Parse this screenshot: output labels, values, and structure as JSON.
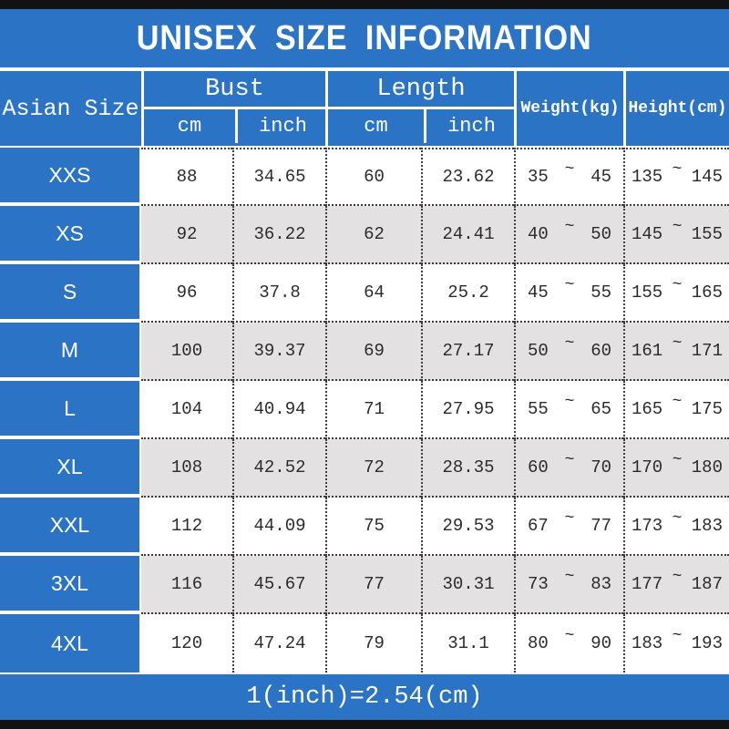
{
  "title": "UNISEX SIZE INFORMATION",
  "tilde": "~",
  "footer_note": "1(inch)=2.54(cm)",
  "colors": {
    "blue": "#2A73C5",
    "alt_row": "#E3E1E2",
    "strip": "#121212",
    "text": "#2B2B2B"
  },
  "header": {
    "size_col": "Asian Size",
    "bust": "Bust",
    "length": "Length",
    "cm": "cm",
    "inch": "inch",
    "weight": "Weight(kg)",
    "height": "Height(cm)"
  },
  "rows": [
    {
      "size": "XXS",
      "bust_cm": "88",
      "bust_inch": "34.65",
      "length_cm": "60",
      "length_inch": "23.62",
      "weight_min": "35",
      "weight_max": "45",
      "height_min": "135",
      "height_max": "145"
    },
    {
      "size": "XS",
      "bust_cm": "92",
      "bust_inch": "36.22",
      "length_cm": "62",
      "length_inch": "24.41",
      "weight_min": "40",
      "weight_max": "50",
      "height_min": "145",
      "height_max": "155"
    },
    {
      "size": "S",
      "bust_cm": "96",
      "bust_inch": "37.8",
      "length_cm": "64",
      "length_inch": "25.2",
      "weight_min": "45",
      "weight_max": "55",
      "height_min": "155",
      "height_max": "165"
    },
    {
      "size": "M",
      "bust_cm": "100",
      "bust_inch": "39.37",
      "length_cm": "69",
      "length_inch": "27.17",
      "weight_min": "50",
      "weight_max": "60",
      "height_min": "161",
      "height_max": "171"
    },
    {
      "size": "L",
      "bust_cm": "104",
      "bust_inch": "40.94",
      "length_cm": "71",
      "length_inch": "27.95",
      "weight_min": "55",
      "weight_max": "65",
      "height_min": "165",
      "height_max": "175"
    },
    {
      "size": "XL",
      "bust_cm": "108",
      "bust_inch": "42.52",
      "length_cm": "72",
      "length_inch": "28.35",
      "weight_min": "60",
      "weight_max": "70",
      "height_min": "170",
      "height_max": "180"
    },
    {
      "size": "XXL",
      "bust_cm": "112",
      "bust_inch": "44.09",
      "length_cm": "75",
      "length_inch": "29.53",
      "weight_min": "67",
      "weight_max": "77",
      "height_min": "173",
      "height_max": "183"
    },
    {
      "size": "3XL",
      "bust_cm": "116",
      "bust_inch": "45.67",
      "length_cm": "77",
      "length_inch": "30.31",
      "weight_min": "73",
      "weight_max": "83",
      "height_min": "177",
      "height_max": "187"
    },
    {
      "size": "4XL",
      "bust_cm": "120",
      "bust_inch": "47.24",
      "length_cm": "79",
      "length_inch": "31.1",
      "weight_min": "80",
      "weight_max": "90",
      "height_min": "183",
      "height_max": "193"
    }
  ],
  "chart_data": {
    "type": "table",
    "title": "UNISEX SIZE INFORMATION",
    "columns": [
      "Asian Size",
      "Bust cm",
      "Bust inch",
      "Length cm",
      "Length inch",
      "Weight(kg)",
      "Height(cm)"
    ],
    "rows": [
      [
        "XXS",
        88,
        34.65,
        60,
        23.62,
        "35~45",
        "135~145"
      ],
      [
        "XS",
        92,
        36.22,
        62,
        24.41,
        "40~50",
        "145~155"
      ],
      [
        "S",
        96,
        37.8,
        64,
        25.2,
        "45~55",
        "155~165"
      ],
      [
        "M",
        100,
        39.37,
        69,
        27.17,
        "50~60",
        "161~171"
      ],
      [
        "L",
        104,
        40.94,
        71,
        27.95,
        "55~65",
        "165~175"
      ],
      [
        "XL",
        108,
        42.52,
        72,
        28.35,
        "60~70",
        "170~180"
      ],
      [
        "XXL",
        112,
        44.09,
        75,
        29.53,
        "67~77",
        "173~183"
      ],
      [
        "3XL",
        116,
        45.67,
        77,
        30.31,
        "73~83",
        "177~187"
      ],
      [
        "4XL",
        120,
        47.24,
        79,
        31.1,
        "80~90",
        "183~193"
      ]
    ],
    "footnote": "1(inch)=2.54(cm)"
  }
}
